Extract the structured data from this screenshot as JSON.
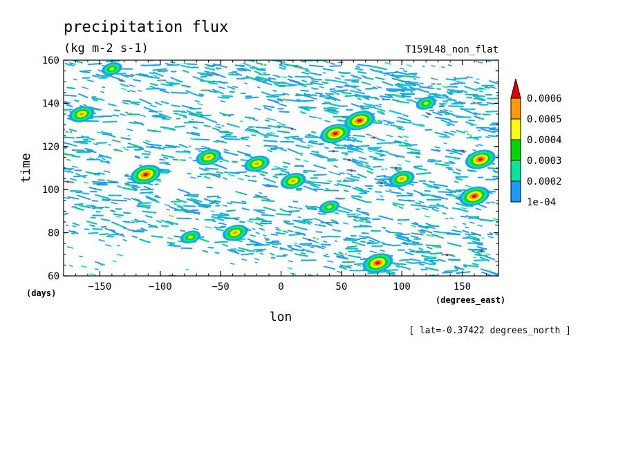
{
  "chart_data": {
    "type": "heatmap",
    "title": "precipitation flux",
    "subtitle": "(kg m-2 s-1)",
    "experiment": "T159L48_non_flat",
    "xlabel": "lon",
    "ylabel": "time",
    "xunits": "(degrees_east)",
    "yunits": "(days)",
    "annotation": "[ lat=-0.37422 degrees_north ]",
    "xlim": [
      -180,
      180
    ],
    "ylim": [
      60,
      160
    ],
    "xticks": [
      -150,
      -100,
      -50,
      0,
      50,
      100,
      150
    ],
    "xtick_labels": [
      "−150",
      "−100",
      "−50",
      "0",
      "50",
      "100",
      "150"
    ],
    "yticks": [
      60,
      80,
      100,
      120,
      140,
      160
    ],
    "ytick_labels": [
      "60",
      "80",
      "100",
      "120",
      "140",
      "160"
    ],
    "colorbar": {
      "levels": [
        0.0001,
        0.0002,
        0.0003,
        0.0004,
        0.0005,
        0.0006
      ],
      "labels": [
        "1e-04",
        "0.0002",
        "0.0003",
        "0.0004",
        "0.0005",
        "0.0006"
      ],
      "colors": [
        "#1e9bff",
        "#00e8a0",
        "#00d800",
        "#ffff00",
        "#ff9a00",
        "#e60000"
      ],
      "extend": "max"
    },
    "field": {
      "description_of_pattern": "sparse eastward-propagating precipitation streaks",
      "bands": [
        {
          "lon_start": -180,
          "time_start": 160,
          "lon_end": 180,
          "time_end": 128
        },
        {
          "lon_start": -180,
          "time_start": 140,
          "lon_end": 180,
          "time_end": 108
        },
        {
          "lon_start": -180,
          "time_start": 122,
          "lon_end": 180,
          "time_end": 92
        },
        {
          "lon_start": -180,
          "time_start": 104,
          "lon_end": 180,
          "time_end": 74
        },
        {
          "lon_start": -180,
          "time_start": 88,
          "lon_end": 180,
          "time_end": 60
        },
        {
          "lon_start": -60,
          "time_start": 160,
          "lon_end": 180,
          "time_end": 142
        }
      ],
      "hotspots": [
        {
          "lon": -38,
          "time": 80,
          "level": 4
        },
        {
          "lon": 40,
          "time": 92,
          "level": 3
        },
        {
          "lon": 45,
          "time": 126,
          "level": 5
        },
        {
          "lon": 65,
          "time": 132,
          "level": 5
        },
        {
          "lon": 80,
          "time": 66,
          "level": 5
        },
        {
          "lon": 160,
          "time": 97,
          "level": 5
        },
        {
          "lon": 165,
          "time": 114,
          "level": 5
        },
        {
          "lon": -165,
          "time": 135,
          "level": 4
        },
        {
          "lon": -112,
          "time": 107,
          "level": 5
        },
        {
          "lon": -20,
          "time": 112,
          "level": 4
        },
        {
          "lon": 10,
          "time": 104,
          "level": 4
        },
        {
          "lon": -140,
          "time": 156,
          "level": 3
        },
        {
          "lon": 120,
          "time": 140,
          "level": 3
        },
        {
          "lon": 100,
          "time": 105,
          "level": 4
        },
        {
          "lon": -60,
          "time": 115,
          "level": 4
        },
        {
          "lon": -75,
          "time": 78,
          "level": 3
        }
      ]
    }
  }
}
